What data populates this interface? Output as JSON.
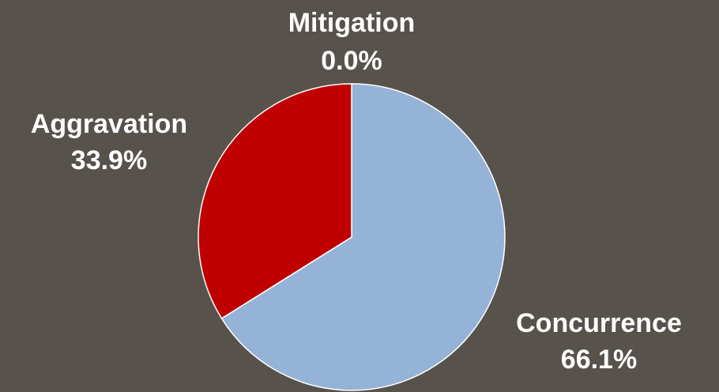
{
  "chart_data": {
    "type": "pie",
    "slices": [
      {
        "label": "Concurrence",
        "value": 66.1,
        "value_label": "66.1%",
        "color": "#95b3d7"
      },
      {
        "label": "Mitigation",
        "value": 0.0,
        "value_label": "0.0%",
        "color": "#4f81bd"
      },
      {
        "label": "Aggravation",
        "value": 33.9,
        "value_label": "33.9%",
        "color": "#c00000"
      }
    ],
    "start_angle_deg": 0,
    "direction": "clockwise",
    "slice_border_color": "#ffffff",
    "label_color": "#ffffff",
    "background_color": "#58524c"
  }
}
